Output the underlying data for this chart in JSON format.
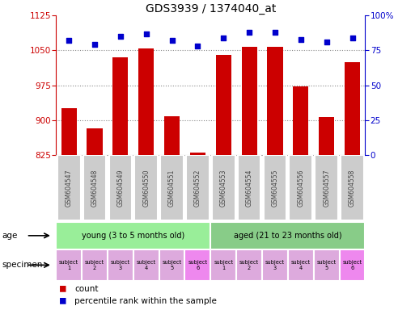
{
  "title": "GDS3939 / 1374040_at",
  "samples": [
    "GSM604547",
    "GSM604548",
    "GSM604549",
    "GSM604550",
    "GSM604551",
    "GSM604552",
    "GSM604553",
    "GSM604554",
    "GSM604555",
    "GSM604556",
    "GSM604557",
    "GSM604558"
  ],
  "counts": [
    925,
    882,
    1035,
    1055,
    908,
    830,
    1040,
    1057,
    1058,
    972,
    907,
    1025
  ],
  "percentiles": [
    82,
    79,
    85,
    87,
    82,
    78,
    84,
    88,
    88,
    83,
    81,
    84
  ],
  "ylim_left": [
    825,
    1125
  ],
  "ylim_right": [
    0,
    100
  ],
  "yticks_left": [
    825,
    900,
    975,
    1050,
    1125
  ],
  "yticks_right": [
    0,
    25,
    50,
    75,
    100
  ],
  "bar_color": "#cc0000",
  "dot_color": "#0000cc",
  "age_groups": [
    {
      "label": "young (3 to 5 months old)",
      "start": 0,
      "end": 6,
      "color": "#99ee99"
    },
    {
      "label": "aged (21 to 23 months old)",
      "start": 6,
      "end": 12,
      "color": "#88cc88"
    }
  ],
  "specimen_colors": [
    "#ddaadd",
    "#ddaadd",
    "#ddaadd",
    "#ddaadd",
    "#ddaadd",
    "#ee88ee",
    "#ddaadd",
    "#ddaadd",
    "#ddaadd",
    "#ddaadd",
    "#ddaadd",
    "#ee88ee"
  ],
  "specimen_labels": [
    "subject\n1",
    "subject\n2",
    "subject\n3",
    "subject\n4",
    "subject\n5",
    "subject\n6",
    "subject\n1",
    "subject\n2",
    "subject\n3",
    "subject\n4",
    "subject\n5",
    "subject\n6"
  ],
  "tick_label_color": "#444444",
  "left_axis_color": "#cc0000",
  "right_axis_color": "#0000cc",
  "grid_color": "#888888",
  "bg_color": "#ffffff",
  "sample_box_color": "#cccccc"
}
